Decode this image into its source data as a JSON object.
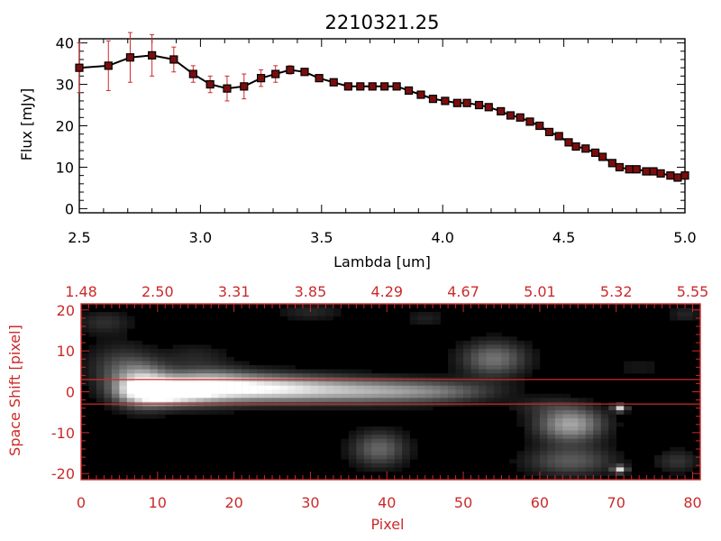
{
  "chart_data": [
    {
      "type": "line",
      "title": "2210321.25",
      "xlabel": "Lambda [um]",
      "ylabel": "Flux [mJy]",
      "xlim": [
        2.5,
        5.0
      ],
      "ylim": [
        -1,
        41
      ],
      "xticks": [
        "2.5",
        "3.0",
        "3.5",
        "4.0",
        "4.5",
        "5.0"
      ],
      "yticks": [
        "0",
        "10",
        "20",
        "30",
        "40"
      ],
      "line_color": "#000000",
      "marker_color": "#7a0e0e",
      "errorbar_color": "#cc2a2a",
      "series": [
        {
          "x": [
            2.5,
            2.62,
            2.71,
            2.8,
            2.89,
            2.97,
            3.04,
            3.11,
            3.18,
            3.25,
            3.31,
            3.37,
            3.43,
            3.49,
            3.55,
            3.61,
            3.66,
            3.71,
            3.76,
            3.81,
            3.86,
            3.91,
            3.96,
            4.01,
            4.06,
            4.1,
            4.15,
            4.19,
            4.24,
            4.28,
            4.32,
            4.36,
            4.4,
            4.44,
            4.48,
            4.52,
            4.55,
            4.59,
            4.63,
            4.66,
            4.7,
            4.73,
            4.77,
            4.8,
            4.84,
            4.87,
            4.9,
            4.94,
            4.97,
            5.0
          ],
          "y": [
            34,
            34.5,
            36.5,
            37,
            36,
            32.5,
            30,
            29,
            29.5,
            31.5,
            32.5,
            33.5,
            33,
            31.5,
            30.5,
            29.5,
            29.5,
            29.5,
            29.5,
            29.5,
            28.5,
            27.5,
            26.5,
            26,
            25.5,
            25.5,
            25,
            24.5,
            23.5,
            22.5,
            22,
            21,
            20,
            18.5,
            17.5,
            16,
            15,
            14.5,
            13.5,
            12.5,
            11,
            10,
            9.5,
            9.5,
            9,
            9,
            8.5,
            8,
            7.5,
            8
          ],
          "yerr": [
            6,
            6,
            6,
            5,
            3,
            2,
            2,
            3,
            3,
            2,
            2,
            1,
            0.6,
            0.6,
            0.5,
            0.5,
            0.5,
            0.5,
            0.5,
            0.5,
            0.5,
            0.5,
            0.5,
            0.5,
            0.5,
            0.5,
            0.5,
            0.5,
            0.5,
            0.5,
            0.5,
            0.5,
            0.5,
            0.5,
            0.5,
            0.5,
            0.5,
            0.5,
            0.5,
            0.5,
            0.5,
            0.5,
            0.5,
            0.5,
            0.5,
            0.5,
            0.5,
            0.5,
            0.5,
            0.5
          ]
        }
      ]
    },
    {
      "type": "heatmap",
      "xlabel": "Pixel",
      "ylabel": "Space Shift [pixel]",
      "xlim": [
        0,
        81
      ],
      "ylim": [
        -21.5,
        21.5
      ],
      "xticks": [
        "0",
        "10",
        "20",
        "30",
        "40",
        "50",
        "60",
        "70",
        "80"
      ],
      "yticks": [
        "-20",
        "-10",
        "0",
        "10",
        "20"
      ],
      "top_axis_ticks": [
        "1.48",
        "2.50",
        "3.31",
        "3.85",
        "4.29",
        "4.67",
        "5.01",
        "5.32",
        "5.55"
      ],
      "extraction_lines_y": [
        3,
        -3
      ],
      "colormap": "grayscale",
      "axis_color": "#cc2a2a",
      "line_color": "#cc2a2a",
      "blobs": [
        {
          "x": 8,
          "y": 1.5,
          "sx": 2.5,
          "sy": 3.5,
          "v": 0.7
        },
        {
          "x": 11,
          "y": 0,
          "sx": 3.5,
          "sy": 2.0,
          "v": 1.0
        },
        {
          "x": 16,
          "y": 1.5,
          "sx": 4.0,
          "sy": 3.0,
          "v": 0.55
        },
        {
          "x": 22,
          "y": 1.0,
          "sx": 6.0,
          "sy": 2.3,
          "v": 0.6
        },
        {
          "x": 30,
          "y": 0.5,
          "sx": 8.0,
          "sy": 2.2,
          "v": 0.5
        },
        {
          "x": 40,
          "y": 0.0,
          "sx": 7.0,
          "sy": 2.0,
          "v": 0.38
        },
        {
          "x": 48,
          "y": 0.0,
          "sx": 5.0,
          "sy": 1.8,
          "v": 0.22
        },
        {
          "x": 5,
          "y": 6,
          "sx": 3.0,
          "sy": 4.0,
          "v": 0.25
        },
        {
          "x": 3,
          "y": 17,
          "sx": 2.5,
          "sy": 2.0,
          "v": 0.18
        },
        {
          "x": 15,
          "y": 9,
          "sx": 3.0,
          "sy": 2.0,
          "v": 0.12
        },
        {
          "x": 30,
          "y": 19.5,
          "sx": 3.0,
          "sy": 1.5,
          "v": 0.15
        },
        {
          "x": 54,
          "y": 8,
          "sx": 3.0,
          "sy": 3.0,
          "v": 0.45
        },
        {
          "x": 45,
          "y": 18,
          "sx": 2.0,
          "sy": 1.5,
          "v": 0.12
        },
        {
          "x": 39,
          "y": -14,
          "sx": 2.5,
          "sy": 3.0,
          "v": 0.4
        },
        {
          "x": 64,
          "y": -8,
          "sx": 3.0,
          "sy": 3.0,
          "v": 0.65
        },
        {
          "x": 64,
          "y": -17,
          "sx": 4.0,
          "sy": 2.5,
          "v": 0.35
        },
        {
          "x": 60,
          "y": -3.5,
          "sx": 3.0,
          "sy": 1.5,
          "v": 0.12
        },
        {
          "x": 70.5,
          "y": -4,
          "sx": 0.6,
          "sy": 0.6,
          "v": 0.8
        },
        {
          "x": 70.5,
          "y": -19,
          "sx": 0.6,
          "sy": 0.6,
          "v": 0.8
        },
        {
          "x": 78,
          "y": -17,
          "sx": 2.0,
          "sy": 2.0,
          "v": 0.2
        },
        {
          "x": 79,
          "y": 19,
          "sx": 1.5,
          "sy": 1.5,
          "v": 0.15
        },
        {
          "x": 73,
          "y": 6,
          "sx": 3.0,
          "sy": 2.5,
          "v": 0.08
        }
      ]
    }
  ]
}
